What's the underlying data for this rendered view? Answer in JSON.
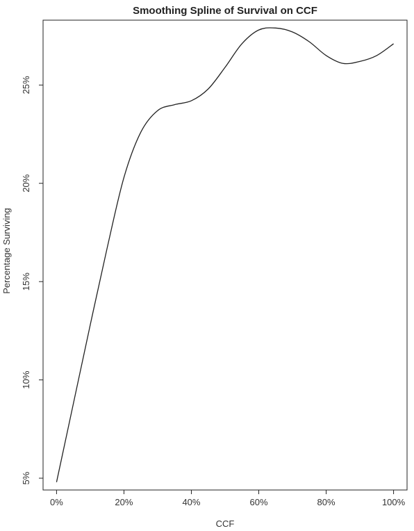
{
  "chart_data": {
    "type": "line",
    "title": "Smoothing Spline of Survival on CCF",
    "xlabel": "CCF",
    "ylabel": "Percentage Surviving",
    "x_tick_labels": [
      "0%",
      "20%",
      "40%",
      "60%",
      "80%",
      "100%"
    ],
    "x_tick_values": [
      0,
      20,
      40,
      60,
      80,
      100
    ],
    "y_tick_labels": [
      "5%",
      "10%",
      "15%",
      "20%",
      "25%"
    ],
    "y_tick_values": [
      5,
      10,
      15,
      20,
      25
    ],
    "xlim": [
      -4,
      104
    ],
    "ylim": [
      4.4,
      28.3
    ],
    "grid": false,
    "series": [
      {
        "x": [
          0,
          5,
          10,
          15,
          20,
          25,
          30,
          35,
          40,
          45,
          50,
          55,
          60,
          65,
          70,
          75,
          80,
          85,
          90,
          95,
          100
        ],
        "values": [
          4.8,
          8.8,
          12.8,
          16.7,
          20.3,
          22.6,
          23.7,
          24.0,
          24.2,
          24.8,
          25.9,
          27.1,
          27.8,
          27.9,
          27.7,
          27.2,
          26.5,
          26.1,
          26.2,
          26.5,
          27.1
        ]
      }
    ]
  }
}
